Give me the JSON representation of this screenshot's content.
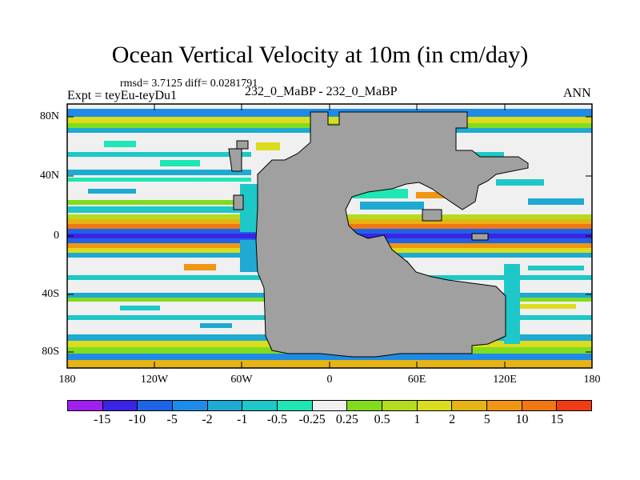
{
  "title": "Ocean Vertical Velocity at 10m (in cm/day)",
  "stats": "rmsd= 3.7125 diff= 0.0281791",
  "expt": "Expt = teyEu-teyDu1",
  "center_label": "232_0_MaBP - 232_0_MaBP",
  "season": "ANN",
  "lat_labels": [
    "80N",
    "40N",
    "0",
    "40S",
    "80S"
  ],
  "lon_labels": [
    "180",
    "120W",
    "60W",
    "0",
    "60E",
    "120E",
    "180"
  ],
  "colorbar": {
    "colors": [
      "#a020f0",
      "#3c24e6",
      "#1e64e6",
      "#1e8ce6",
      "#1eaad2",
      "#1ec8c8",
      "#1ee6b4",
      "#f0f0f0",
      "#82dc1e",
      "#b4dc1e",
      "#dcdc1e",
      "#e6b414",
      "#f09614",
      "#f07814",
      "#f03c14"
    ],
    "labels": [
      "-15",
      "-10",
      "-5",
      "-2",
      "-1",
      "-0.5",
      "-0.25",
      "0.25",
      "0.5",
      "1",
      "2",
      "5",
      "10",
      "15"
    ]
  },
  "map_colors": {
    "land": "#a0a0a0",
    "neutral": "#f0f0f0"
  }
}
